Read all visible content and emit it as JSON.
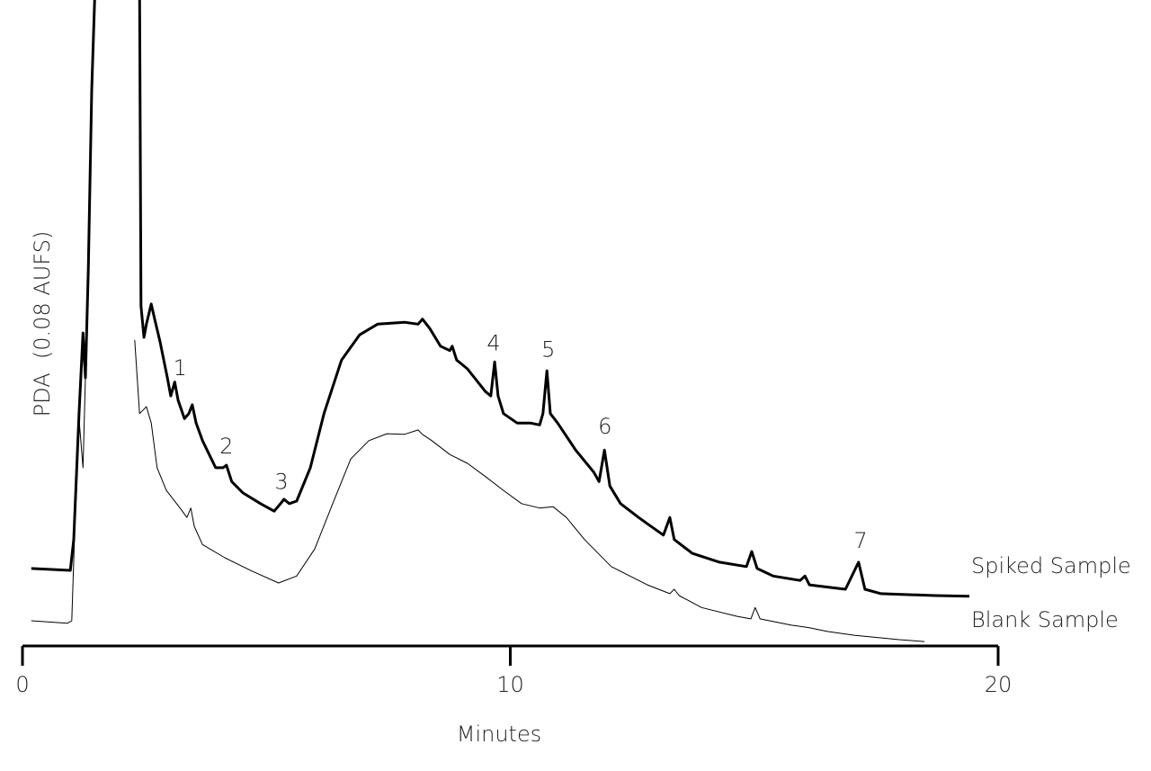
{
  "chart_data": {
    "type": "line",
    "x_label": "Minutes",
    "y_label": "PDA  (0.08 AUFS)",
    "xlim": [
      0,
      20
    ],
    "xticks": [
      0,
      10,
      20
    ],
    "ylim": [
      0,
      100
    ],
    "series": [
      {
        "name": "Spiked Sample",
        "color": "#000000",
        "line_width": 3,
        "x": [
          0.18,
          0.98,
          1.05,
          1.16,
          1.24,
          1.29,
          1.35,
          1.42,
          1.49,
          null,
          2.4,
          2.43,
          2.49,
          2.54,
          2.64,
          2.71,
          2.82,
          2.97,
          3.04,
          3.12,
          3.19,
          3.32,
          3.41,
          3.48,
          3.56,
          3.69,
          3.96,
          4.11,
          4.18,
          4.29,
          4.52,
          4.88,
          5.16,
          5.29,
          5.36,
          5.47,
          5.62,
          5.9,
          6.18,
          6.54,
          6.91,
          7.28,
          7.83,
          8.11,
          8.2,
          8.35,
          8.57,
          8.76,
          8.81,
          8.9,
          9.12,
          9.49,
          9.6,
          9.68,
          9.75,
          9.86,
          10.14,
          10.41,
          10.6,
          10.67,
          10.75,
          10.82,
          10.97,
          11.34,
          11.71,
          11.82,
          11.93,
          12.04,
          12.26,
          12.63,
          12.81,
          13.14,
          13.27,
          13.36,
          13.73,
          14.29,
          14.84,
          14.95,
          15.06,
          15.39,
          15.94,
          16.04,
          16.13,
          16.87,
          17.14,
          17.27,
          17.6,
          18.71,
          19.41
        ],
        "values": [
          12.3,
          12.0,
          16.9,
          36.9,
          49.7,
          42.6,
          59.7,
          88.3,
          105,
          null,
          105,
          54.0,
          49.0,
          51.1,
          54.3,
          51.9,
          48.3,
          42.6,
          39.7,
          41.9,
          39.0,
          36.1,
          36.9,
          38.3,
          35.4,
          32.6,
          28.3,
          28.3,
          28.7,
          26.1,
          24.3,
          22.6,
          21.4,
          22.6,
          23.3,
          22.6,
          23.0,
          28.3,
          36.9,
          45.4,
          49.4,
          51.1,
          51.4,
          51.1,
          51.9,
          50.4,
          47.6,
          46.9,
          47.6,
          45.4,
          44.0,
          40.4,
          39.7,
          45.1,
          39.7,
          36.9,
          35.4,
          35.4,
          35.1,
          36.9,
          43.7,
          36.9,
          35.4,
          31.1,
          27.6,
          26.1,
          31.1,
          25.4,
          22.6,
          20.4,
          19.4,
          17.6,
          20.4,
          16.9,
          14.7,
          13.3,
          12.6,
          15.0,
          12.3,
          11.1,
          10.4,
          11.1,
          9.7,
          9.0,
          13.3,
          9.0,
          8.3,
          8.0,
          7.9
        ]
      },
      {
        "name": "Blank Sample",
        "color": "#000000",
        "line_width": 1,
        "x": [
          0.18,
          0.92,
          1.01,
          1.09,
          1.16,
          1.24,
          1.29,
          1.38,
          1.46,
          1.49,
          null,
          2.3,
          2.4,
          2.49,
          2.54,
          2.64,
          2.76,
          2.95,
          3.23,
          3.37,
          3.45,
          3.52,
          3.69,
          4.15,
          4.7,
          5.25,
          5.62,
          5.99,
          6.36,
          6.73,
          7.1,
          7.47,
          7.83,
          8.11,
          8.2,
          8.39,
          8.76,
          9.12,
          9.49,
          9.86,
          10.23,
          10.6,
          10.88,
          11.15,
          11.52,
          12.07,
          12.81,
          13.27,
          13.36,
          13.46,
          13.92,
          14.65,
          14.93,
          15.02,
          15.12,
          15.76,
          16.13,
          16.5,
          17.05,
          17.97,
          18.49
        ],
        "values": [
          4.0,
          3.6,
          4.0,
          22.6,
          36.1,
          28.3,
          42.6,
          74.0,
          99.7,
          105,
          null,
          48.6,
          36.9,
          37.6,
          38.0,
          35.4,
          28.3,
          24.7,
          21.9,
          20.4,
          21.9,
          19.0,
          16.1,
          14.0,
          11.9,
          10.0,
          11.1,
          15.4,
          22.6,
          29.7,
          32.6,
          33.7,
          33.6,
          34.3,
          33.6,
          32.6,
          30.4,
          29.0,
          26.9,
          24.7,
          22.6,
          21.9,
          22.1,
          20.4,
          16.9,
          12.6,
          9.7,
          8.3,
          9.0,
          8.0,
          6.1,
          4.7,
          4.3,
          6.1,
          4.3,
          3.3,
          2.9,
          2.3,
          1.7,
          1.0,
          0.7
        ]
      }
    ],
    "annotations": [
      {
        "text": "1",
        "x": 3.23,
        "y": 44.0
      },
      {
        "text": "2",
        "x": 4.18,
        "y": 31.6
      },
      {
        "text": "3",
        "x": 5.31,
        "y": 25.9
      },
      {
        "text": "4",
        "x": 9.66,
        "y": 47.9
      },
      {
        "text": "5",
        "x": 10.78,
        "y": 46.9
      },
      {
        "text": "6",
        "x": 11.94,
        "y": 34.7
      },
      {
        "text": "7",
        "x": 17.18,
        "y": 16.6
      }
    ]
  }
}
